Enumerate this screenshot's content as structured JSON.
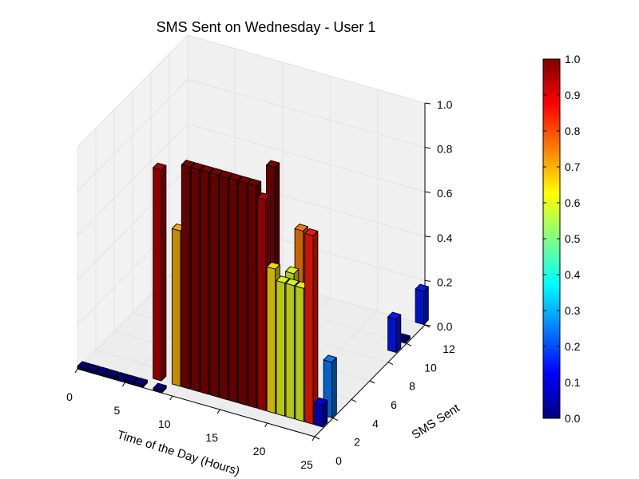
{
  "chart_data": {
    "type": "bar3d",
    "title": "SMS Sent on Wednesday - User 1",
    "xlabel": "Time of the Day (Hours)",
    "ylabel": "SMS Sent",
    "x_ticks": [
      "0",
      "5",
      "10",
      "15",
      "20",
      "25"
    ],
    "y_ticks": [
      "0",
      "2",
      "4",
      "6",
      "8",
      "10",
      "12"
    ],
    "z_ticks": [
      "0.0",
      "0.2",
      "0.4",
      "0.6",
      "0.8",
      "1.0"
    ],
    "colorbar_ticks": [
      "0.0",
      "0.1",
      "0.2",
      "0.3",
      "0.4",
      "0.5",
      "0.6",
      "0.7",
      "0.8",
      "0.9",
      "1.0"
    ],
    "xlim": [
      0,
      25
    ],
    "ylim": [
      0,
      12
    ],
    "zlim": [
      0,
      1
    ],
    "colormap": "jet",
    "bars": [
      {
        "hour": 0,
        "sms": 0,
        "value": 0.0
      },
      {
        "hour": 1,
        "sms": 0,
        "value": 0.0
      },
      {
        "hour": 2,
        "sms": 0,
        "value": 0.0
      },
      {
        "hour": 3,
        "sms": 0,
        "value": 0.0
      },
      {
        "hour": 4,
        "sms": 0,
        "value": 0.0
      },
      {
        "hour": 5,
        "sms": 0,
        "value": 0.0
      },
      {
        "hour": 6,
        "sms": 0,
        "value": 0.0
      },
      {
        "hour": 7,
        "sms": 1,
        "value": 0.95
      },
      {
        "hour": 8,
        "sms": 0,
        "value": 0.0
      },
      {
        "hour": 9,
        "sms": 1,
        "value": 0.7
      },
      {
        "hour": 10,
        "sms": 1,
        "value": 1.0
      },
      {
        "hour": 11,
        "sms": 1,
        "value": 1.0
      },
      {
        "hour": 12,
        "sms": 1,
        "value": 1.0
      },
      {
        "hour": 13,
        "sms": 1,
        "value": 1.0
      },
      {
        "hour": 14,
        "sms": 1,
        "value": 1.0
      },
      {
        "hour": 15,
        "sms": 1,
        "value": 1.0
      },
      {
        "hour": 16,
        "sms": 1,
        "value": 1.0
      },
      {
        "hour": 17,
        "sms": 1,
        "value": 1.0
      },
      {
        "hour": 17,
        "sms": 3,
        "value": 1.0
      },
      {
        "hour": 18,
        "sms": 1,
        "value": 0.95
      },
      {
        "hour": 19,
        "sms": 1,
        "value": 0.65
      },
      {
        "hour": 20,
        "sms": 1,
        "value": 0.6
      },
      {
        "hour": 20,
        "sms": 2,
        "value": 0.6
      },
      {
        "hour": 20,
        "sms": 3,
        "value": 0.75
      },
      {
        "hour": 21,
        "sms": 1,
        "value": 0.6
      },
      {
        "hour": 22,
        "sms": 1,
        "value": 0.6
      },
      {
        "hour": 23,
        "sms": 1,
        "value": 0.85
      },
      {
        "hour": 24,
        "sms": 1,
        "value": 0.1
      },
      {
        "hour": 24,
        "sms": 2,
        "value": 0.25
      },
      {
        "hour": 24,
        "sms": 9,
        "value": 0.15
      },
      {
        "hour": 24,
        "sms": 10,
        "value": 0.0
      },
      {
        "hour": 24,
        "sms": 12,
        "value": 0.15
      }
    ]
  }
}
